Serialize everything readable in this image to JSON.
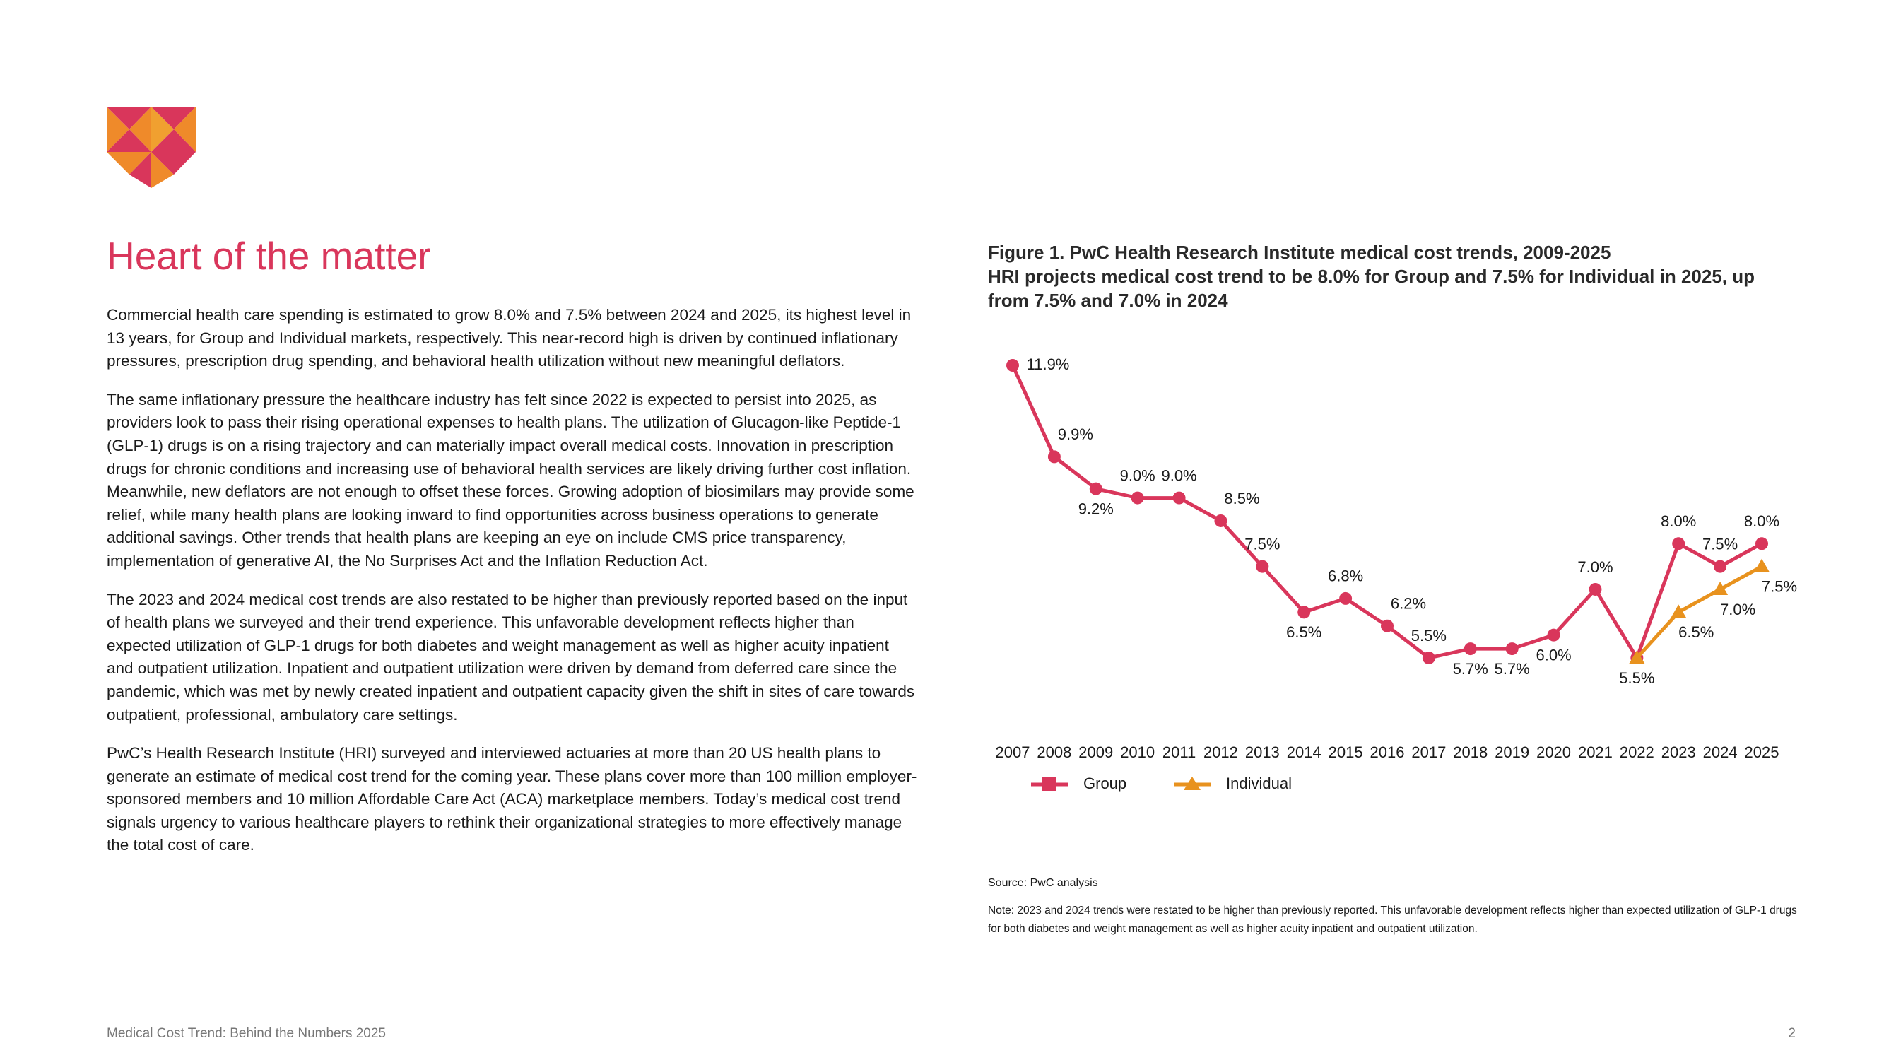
{
  "document": {
    "title": "Heart of the matter",
    "paragraphs": [
      "Commercial health care spending is estimated to grow 8.0% and 7.5% between 2024 and 2025, its highest level in 13 years, for Group and Individual markets, respectively. This near-record high is driven by continued inflationary pressures, prescription drug spending, and behavioral health utilization without new meaningful deflators.",
      "The same inflationary pressure the healthcare industry has felt since 2022 is expected to persist into 2025, as providers look to pass their rising operational expenses to health plans. The utilization of Glucagon-like Peptide-1 (GLP-1) drugs is on a rising trajectory and can materially impact overall medical costs. Innovation in prescription drugs for chronic conditions and increasing use of behavioral health services are likely driving further cost inflation. Meanwhile, new deflators are not enough to offset these forces. Growing adoption of biosimilars may provide some relief, while many health plans are looking inward to find opportunities across business operations to generate additional savings. Other trends that health plans are keeping an eye on include CMS price transparency, implementation of generative AI, the No Surprises Act and the Inflation Reduction Act.",
      "The 2023 and 2024 medical cost trends are also restated to be higher than previously reported based on the input of health plans we surveyed and their trend experience. This unfavorable development reflects higher than expected utilization of GLP-1 drugs for both diabetes and weight management as well as higher acuity inpatient and outpatient utilization. Inpatient and outpatient utilization were driven by demand from deferred care since the pandemic, which was met by newly created inpatient and outpatient capacity given the shift in sites of care towards outpatient, professional, ambulatory care settings.",
      "PwC’s Health Research Institute (HRI) surveyed and interviewed actuaries at more than 20 US health plans to generate an estimate of medical cost trend for the coming year. These plans cover more than 100 million employer-sponsored members and 10 million Affordable Care Act (ACA) marketplace members. Today’s medical cost trend signals urgency to various healthcare players to rethink their organizational strategies to more effectively manage the total cost of care."
    ],
    "footer": "Medical Cost Trend: Behind the Numbers 2025",
    "page_number": 2
  },
  "chart_data": {
    "type": "line",
    "title": "Figure 1. PwC Health Research Institute medical cost trends, 2009-2025",
    "subtitle": "HRI projects medical cost trend to be 8.0% for Group and 7.5% for Individual in 2025, up from 7.5% and 7.0% in 2024",
    "categories": [
      "2007",
      "2008",
      "2009",
      "2010",
      "2011",
      "2012",
      "2013",
      "2014",
      "2015",
      "2016",
      "2017",
      "2018",
      "2019",
      "2020",
      "2021",
      "2022",
      "2023",
      "2024",
      "2025"
    ],
    "series": [
      {
        "name": "Group",
        "color": "#d9365b",
        "values": [
          11.9,
          9.9,
          9.2,
          9.0,
          9.0,
          8.5,
          7.5,
          6.5,
          6.8,
          6.2,
          5.5,
          5.7,
          5.7,
          6.0,
          7.0,
          5.5,
          8.0,
          7.5,
          8.0
        ],
        "value_labels": [
          "11.9%",
          "9.9%",
          "9.2%",
          "9.0%",
          "9.0%",
          "8.5%",
          "7.5%",
          "6.5%",
          "6.8%",
          "6.2%",
          "5.5%",
          "5.7%",
          "5.7%",
          "6.0%",
          "7.0%",
          "5.5%",
          "8.0%",
          "7.5%",
          "8.0%"
        ]
      },
      {
        "name": "Individual",
        "color": "#e8921e",
        "values": [
          null,
          null,
          null,
          null,
          null,
          null,
          null,
          null,
          null,
          null,
          null,
          null,
          null,
          null,
          null,
          5.5,
          6.5,
          7.0,
          7.5
        ],
        "value_labels": [
          null,
          null,
          null,
          null,
          null,
          null,
          null,
          null,
          null,
          null,
          null,
          null,
          null,
          null,
          null,
          null,
          "6.5%",
          "7.0%",
          "7.5%"
        ]
      }
    ],
    "source": "Source: PwC analysis",
    "note": "Note: 2023 and 2024 trends were restated to be higher than previously reported. This unfavorable development reflects higher than expected utilization of GLP-1 drugs for both diabetes and weight management as well as higher acuity inpatient and outpatient utilization."
  }
}
